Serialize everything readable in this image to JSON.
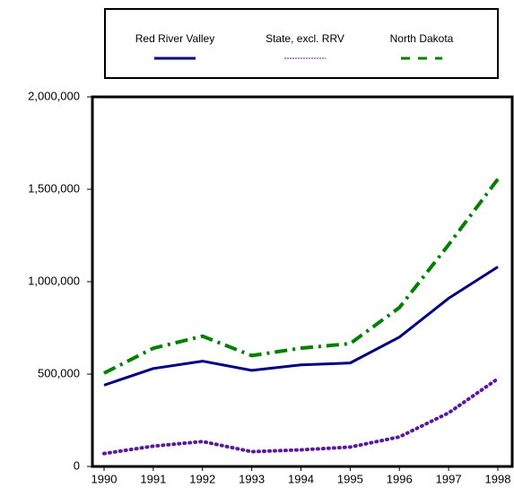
{
  "chart_data": {
    "type": "line",
    "categories": [
      "1990",
      "1991",
      "1992",
      "1993",
      "1994",
      "1995",
      "1996",
      "1997",
      "1998"
    ],
    "series": [
      {
        "name": "Red River Valley",
        "color": "#000080",
        "values": [
          440000,
          530000,
          570000,
          520000,
          550000,
          560000,
          700000,
          910000,
          1080000
        ]
      },
      {
        "name": "State, excl. RRV",
        "color": "#5a1a9a",
        "values": [
          70000,
          110000,
          135000,
          80000,
          90000,
          105000,
          160000,
          290000,
          475000
        ]
      },
      {
        "name": "North Dakota",
        "color": "#008000",
        "values": [
          505000,
          640000,
          705000,
          600000,
          640000,
          665000,
          860000,
          1200000,
          1555000
        ]
      }
    ],
    "ylim": [
      0,
      2000000
    ],
    "yticks": [
      0,
      {
        "value": 500000,
        "label": "500,000"
      },
      {
        "value": 1000000,
        "label": "1,000,000"
      },
      {
        "value": 1500000,
        "label": "1,500,000"
      },
      {
        "value": 2000000,
        "label": "2,000,000"
      }
    ],
    "grid": false,
    "legend": "top"
  }
}
